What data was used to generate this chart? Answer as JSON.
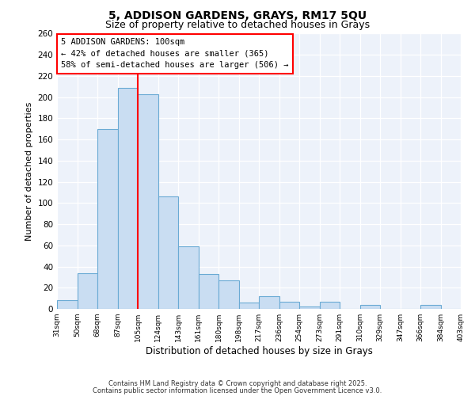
{
  "title1": "5, ADDISON GARDENS, GRAYS, RM17 5QU",
  "title2": "Size of property relative to detached houses in Grays",
  "xlabel": "Distribution of detached houses by size in Grays",
  "ylabel": "Number of detached properties",
  "categories": [
    "31sqm",
    "50sqm",
    "68sqm",
    "87sqm",
    "105sqm",
    "124sqm",
    "143sqm",
    "161sqm",
    "180sqm",
    "198sqm",
    "217sqm",
    "236sqm",
    "254sqm",
    "273sqm",
    "291sqm",
    "310sqm",
    "329sqm",
    "347sqm",
    "366sqm",
    "384sqm",
    "403sqm"
  ],
  "values": [
    8,
    34,
    170,
    209,
    203,
    106,
    59,
    33,
    27,
    6,
    12,
    7,
    2,
    7,
    0,
    4,
    0,
    0,
    4,
    0
  ],
  "bar_color": "#c9ddf2",
  "bar_edge_color": "#6aaad4",
  "red_line_x": 4,
  "ylim": [
    0,
    260
  ],
  "yticks": [
    0,
    20,
    40,
    60,
    80,
    100,
    120,
    140,
    160,
    180,
    200,
    220,
    240,
    260
  ],
  "annotation_title": "5 ADDISON GARDENS: 100sqm",
  "annotation_line1": "← 42% of detached houses are smaller (365)",
  "annotation_line2": "58% of semi-detached houses are larger (506) →",
  "footer1": "Contains HM Land Registry data © Crown copyright and database right 2025.",
  "footer2": "Contains public sector information licensed under the Open Government Licence v3.0.",
  "background_color": "#edf2fa"
}
